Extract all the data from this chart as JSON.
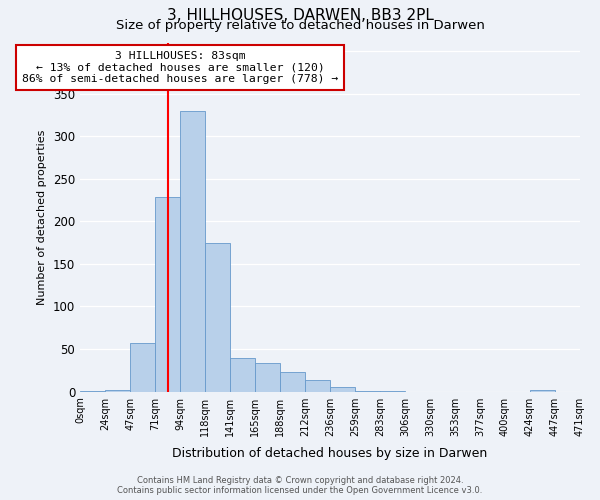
{
  "title": "3, HILLHOUSES, DARWEN, BB3 2PL",
  "subtitle": "Size of property relative to detached houses in Darwen",
  "xlabel": "Distribution of detached houses by size in Darwen",
  "ylabel": "Number of detached properties",
  "bin_labels": [
    "0sqm",
    "24sqm",
    "47sqm",
    "71sqm",
    "94sqm",
    "118sqm",
    "141sqm",
    "165sqm",
    "188sqm",
    "212sqm",
    "236sqm",
    "259sqm",
    "283sqm",
    "306sqm",
    "330sqm",
    "353sqm",
    "377sqm",
    "400sqm",
    "424sqm",
    "447sqm",
    "471sqm"
  ],
  "bar_heights": [
    1,
    2,
    57,
    229,
    330,
    174,
    39,
    34,
    23,
    14,
    5,
    1,
    1,
    0,
    0,
    0,
    0,
    0,
    2,
    0
  ],
  "bar_color": "#b8d0ea",
  "bar_edge_color": "#6699cc",
  "red_line_x": 3.52,
  "annotation_title": "3 HILLHOUSES: 83sqm",
  "annotation_line1": "← 13% of detached houses are smaller (120)",
  "annotation_line2": "86% of semi-detached houses are larger (778) →",
  "annotation_box_color": "#ffffff",
  "annotation_box_edge": "#cc0000",
  "ylim": [
    0,
    410
  ],
  "footer1": "Contains HM Land Registry data © Crown copyright and database right 2024.",
  "footer2": "Contains public sector information licensed under the Open Government Licence v3.0.",
  "bg_color": "#eef2f8",
  "grid_color": "#ffffff",
  "title_fontsize": 11,
  "subtitle_fontsize": 9.5
}
